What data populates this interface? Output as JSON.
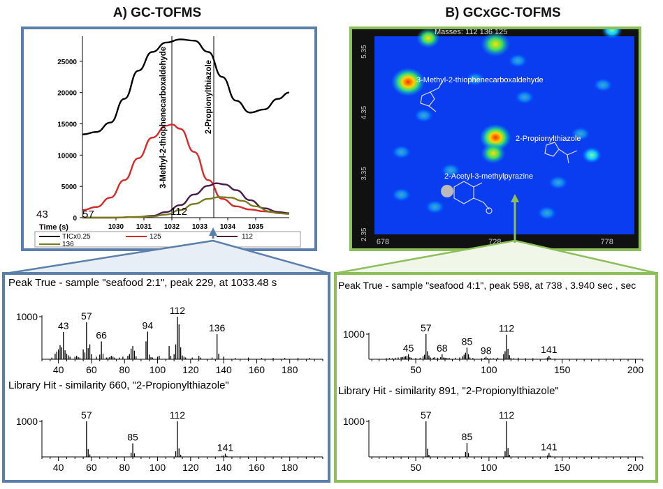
{
  "colors": {
    "blue_frame": "#5b7fab",
    "green_frame": "#8cbf5a",
    "tic": "#000000",
    "ion125": "#d62a2a",
    "ion112": "#4a1c4a",
    "ion136": "#7a7a1e"
  },
  "panelA": {
    "heading": "A) GC-TOFMS",
    "xlabel": "Time (s)",
    "corner_labels": [
      "43",
      "57",
      "112"
    ],
    "annotations": [
      "3-Methyl-2-thiophenecarboxaldehyde",
      "2-Propionylthiazole"
    ],
    "legend": [
      "TICx0.25",
      "125",
      "112",
      "136"
    ]
  },
  "panelB": {
    "heading": "B) GCxGC-TOFMS",
    "masses": "Masses: 112 136 125",
    "compounds": [
      "3-Methyl-2-thiophenecarboxaldehyde",
      "2-Propionylthiazole",
      "2-Acetyl-3-methylpyrazine"
    ]
  },
  "spectra": {
    "peakA": {
      "title": "Peak True - sample \"seafood 2:1\", peak 229, at 1033.48 s"
    },
    "libA": {
      "title": "Library Hit - similarity 660, \"2-Propionylthiazole\""
    },
    "peakB": {
      "title": "Peak True - sample \"seafood 4:1\", peak 598, at 738 , 3.940 sec , sec"
    },
    "libB": {
      "title": "Library Hit - similarity 891, \"2-Propionylthiazole\""
    }
  },
  "chart_data": [
    {
      "type": "line",
      "title": "A) GC-TOFMS",
      "xlabel": "Time (s)",
      "ylabel": "",
      "xlim": [
        1028.8,
        1036.2
      ],
      "ylim": [
        0,
        29000
      ],
      "xticks": [
        1030,
        1031,
        1032,
        1033,
        1034,
        1035
      ],
      "yticks": [
        0,
        5000,
        10000,
        15000,
        20000,
        25000
      ],
      "series": [
        {
          "name": "TICx0.25",
          "x": [
            1028.8,
            1029.3,
            1029.8,
            1030.3,
            1030.8,
            1031.3,
            1031.8,
            1032.3,
            1032.8,
            1033.3,
            1033.8,
            1034.3,
            1034.8,
            1035.3,
            1035.8,
            1036.2
          ],
          "y": [
            13300,
            13700,
            15200,
            19000,
            23500,
            26500,
            28000,
            28500,
            28300,
            26500,
            22500,
            18700,
            16800,
            17300,
            19000,
            20000
          ]
        },
        {
          "name": "125",
          "x": [
            1028.8,
            1029.3,
            1029.8,
            1030.3,
            1030.8,
            1031.3,
            1031.8,
            1032.0,
            1032.3,
            1032.8,
            1033.3,
            1033.8,
            1034.3,
            1034.8,
            1035.3,
            1035.8,
            1036.2
          ],
          "y": [
            1200,
            1700,
            3200,
            6000,
            9500,
            12800,
            14700,
            14900,
            14200,
            10500,
            6000,
            3000,
            1800,
            1300,
            1000,
            800,
            700
          ]
        },
        {
          "name": "112",
          "x": [
            1028.8,
            1029.8,
            1030.8,
            1031.3,
            1031.8,
            1032.3,
            1032.8,
            1033.3,
            1033.6,
            1033.9,
            1034.3,
            1034.8,
            1035.3,
            1035.8,
            1036.2
          ],
          "y": [
            0,
            0,
            100,
            300,
            900,
            2000,
            3700,
            5100,
            5500,
            5300,
            4400,
            2800,
            1500,
            900,
            700
          ]
        },
        {
          "name": "136",
          "x": [
            1028.8,
            1029.8,
            1030.8,
            1031.3,
            1031.8,
            1032.3,
            1032.8,
            1033.3,
            1033.7,
            1034.1,
            1034.5,
            1035.0,
            1035.5,
            1035.8,
            1036.2
          ],
          "y": [
            0,
            0,
            100,
            200,
            500,
            1200,
            2200,
            3000,
            3300,
            3200,
            2700,
            1800,
            1000,
            700,
            600
          ]
        }
      ],
      "vlines": [
        1032.0,
        1033.5
      ]
    },
    {
      "type": "heatmap",
      "title": "B) GCxGC-TOFMS",
      "xlim": [
        678,
        794
      ],
      "ylim": [
        2.35,
        5.6
      ],
      "xticks": [
        678,
        728,
        778
      ],
      "yticks": [
        2.35,
        3.35,
        4.35,
        5.35
      ],
      "peaks": [
        {
          "x": 693,
          "y": 4.85,
          "intensity": 1.0
        },
        {
          "x": 732,
          "y": 3.94,
          "intensity": 0.9
        },
        {
          "x": 732,
          "y": 5.47,
          "intensity": 0.8
        },
        {
          "x": 731,
          "y": 3.68,
          "intensity": 0.55
        },
        {
          "x": 702,
          "y": 5.57,
          "intensity": 0.5
        },
        {
          "x": 784,
          "y": 5.7,
          "intensity": 0.35
        },
        {
          "x": 775,
          "y": 3.65,
          "intensity": 0.3
        }
      ]
    },
    {
      "type": "bar",
      "title": "Peak True - sample \"seafood 2:1\", peak 229, at 1033.48 s",
      "xlim": [
        30,
        200
      ],
      "ylim": [
        0,
        1000
      ],
      "xticks": [
        40,
        60,
        80,
        100,
        120,
        140,
        160,
        180
      ],
      "labels": [
        43,
        57,
        66,
        94,
        112,
        136
      ],
      "x": [
        36,
        38,
        39,
        40,
        41,
        42,
        43,
        44,
        45,
        46,
        47,
        50,
        51,
        52,
        53,
        55,
        56,
        57,
        58,
        59,
        60,
        63,
        65,
        66,
        67,
        69,
        70,
        71,
        72,
        73,
        74,
        77,
        79,
        82,
        83,
        84,
        85,
        86,
        87,
        93,
        94,
        95,
        96,
        97,
        100,
        101,
        107,
        108,
        110,
        111,
        112,
        113,
        114,
        115,
        116,
        117,
        121,
        125,
        126,
        133,
        136,
        137,
        140,
        147,
        155,
        163,
        170,
        177,
        185,
        192
      ],
      "y": [
        40,
        130,
        180,
        230,
        330,
        280,
        640,
        210,
        130,
        90,
        60,
        60,
        80,
        50,
        40,
        230,
        160,
        870,
        260,
        350,
        120,
        60,
        110,
        420,
        130,
        40,
        40,
        50,
        80,
        60,
        40,
        40,
        60,
        80,
        120,
        250,
        310,
        200,
        70,
        420,
        650,
        110,
        50,
        40,
        60,
        80,
        310,
        80,
        120,
        350,
        1000,
        820,
        280,
        90,
        60,
        40,
        40,
        80,
        40,
        40,
        590,
        130,
        60,
        30,
        40,
        30,
        30,
        30,
        30,
        30
      ]
    },
    {
      "type": "bar",
      "title": "Library Hit - similarity 660, \"2-Propionylthiazole\"",
      "xlim": [
        30,
        200
      ],
      "ylim": [
        0,
        1000
      ],
      "xticks": [
        40,
        60,
        80,
        100,
        120,
        140,
        160,
        180
      ],
      "labels": [
        57,
        85,
        112,
        141
      ],
      "x": [
        57,
        58,
        59,
        84,
        85,
        86,
        111,
        112,
        113,
        114,
        139,
        140,
        141,
        142
      ],
      "y": [
        1000,
        220,
        70,
        120,
        380,
        100,
        160,
        1000,
        240,
        60,
        30,
        40,
        90,
        30
      ]
    },
    {
      "type": "bar",
      "title": "Peak True - sample \"seafood 4:1\", peak 598, at 738 , 3.940 sec , sec",
      "xlim": [
        18,
        205
      ],
      "ylim": [
        0,
        1000
      ],
      "xticks": [
        50,
        100,
        150,
        200
      ],
      "labels": [
        45,
        57,
        68,
        85,
        98,
        112,
        141
      ],
      "x": [
        30,
        32,
        34,
        36,
        38,
        40,
        41,
        42,
        43,
        44,
        45,
        46,
        47,
        50,
        53,
        55,
        56,
        57,
        58,
        59,
        60,
        62,
        63,
        65,
        67,
        68,
        69,
        70,
        71,
        72,
        73,
        77,
        80,
        82,
        83,
        84,
        85,
        86,
        87,
        89,
        95,
        97,
        98,
        99,
        101,
        103,
        106,
        110,
        111,
        112,
        113,
        114,
        115,
        117,
        120,
        125,
        130,
        139,
        140,
        141,
        142,
        145
      ],
      "y": [
        40,
        50,
        40,
        60,
        70,
        80,
        90,
        100,
        120,
        140,
        200,
        80,
        60,
        50,
        60,
        120,
        180,
        1000,
        320,
        150,
        70,
        60,
        80,
        60,
        80,
        200,
        70,
        60,
        50,
        40,
        40,
        60,
        70,
        120,
        180,
        260,
        460,
        200,
        70,
        50,
        40,
        60,
        100,
        50,
        40,
        40,
        60,
        200,
        320,
        980,
        420,
        160,
        60,
        40,
        60,
        40,
        40,
        40,
        70,
        140,
        60,
        30
      ]
    },
    {
      "type": "bar",
      "title": "Library Hit - similarity 891, \"2-Propionylthiazole\"",
      "xlim": [
        18,
        205
      ],
      "ylim": [
        0,
        1000
      ],
      "xticks": [
        50,
        100,
        150,
        200
      ],
      "labels": [
        57,
        85,
        112,
        141
      ],
      "x": [
        57,
        58,
        59,
        84,
        85,
        86,
        111,
        112,
        113,
        114,
        140,
        141,
        142
      ],
      "y": [
        1000,
        230,
        60,
        140,
        390,
        110,
        160,
        1000,
        250,
        60,
        40,
        110,
        40
      ]
    }
  ]
}
